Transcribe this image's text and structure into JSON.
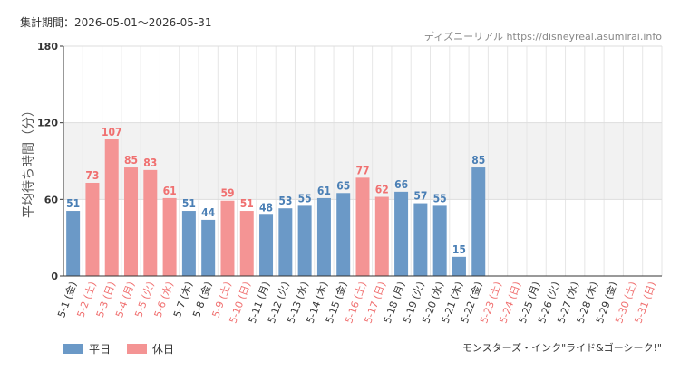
{
  "header": {
    "period": "集計期間：2026-05-01〜2026-05-31",
    "source": "ディズニーリアル https://disneyreal.asumirai.info"
  },
  "footer": {
    "attraction": "モンスターズ・インク\"ライド&ゴーシーク!\""
  },
  "colors": {
    "weekday": "#6b99c7",
    "holiday": "#f49494",
    "weekday_label": "#4a7fb5",
    "holiday_label": "#f07070",
    "band": "#f2f2f2",
    "grid": "#e6e6e6"
  },
  "chart_data": {
    "type": "bar",
    "ylabel": "平均待ち時間（分）",
    "ylim": [
      0,
      180
    ],
    "yticks": [
      0,
      60,
      120,
      180
    ],
    "band": [
      60,
      120
    ],
    "legend": {
      "position": "bottom-left",
      "entries": [
        "平日",
        "休日"
      ]
    },
    "categories": [
      "5-1 (金)",
      "5-2 (土)",
      "5-3 (日)",
      "5-4 (月)",
      "5-5 (火)",
      "5-6 (水)",
      "5-7 (木)",
      "5-8 (金)",
      "5-9 (土)",
      "5-10 (日)",
      "5-11 (月)",
      "5-12 (火)",
      "5-13 (水)",
      "5-14 (木)",
      "5-15 (金)",
      "5-16 (土)",
      "5-17 (日)",
      "5-18 (月)",
      "5-19 (火)",
      "5-20 (水)",
      "5-21 (木)",
      "5-22 (金)",
      "5-23 (土)",
      "5-24 (日)",
      "5-25 (月)",
      "5-26 (火)",
      "5-27 (水)",
      "5-28 (木)",
      "5-29 (金)",
      "5-30 (土)",
      "5-31 (日)"
    ],
    "day_types": [
      "weekday",
      "holiday",
      "holiday",
      "holiday",
      "holiday",
      "holiday",
      "weekday",
      "weekday",
      "holiday",
      "holiday",
      "weekday",
      "weekday",
      "weekday",
      "weekday",
      "weekday",
      "holiday",
      "holiday",
      "weekday",
      "weekday",
      "weekday",
      "weekday",
      "weekday",
      "holiday",
      "holiday",
      "weekday",
      "weekday",
      "weekday",
      "weekday",
      "weekday",
      "holiday",
      "holiday"
    ],
    "values": [
      51,
      73,
      107,
      85,
      83,
      61,
      51,
      44,
      59,
      51,
      48,
      53,
      55,
      61,
      65,
      77,
      62,
      66,
      57,
      55,
      15,
      85,
      null,
      null,
      null,
      null,
      null,
      null,
      null,
      null,
      null
    ]
  }
}
